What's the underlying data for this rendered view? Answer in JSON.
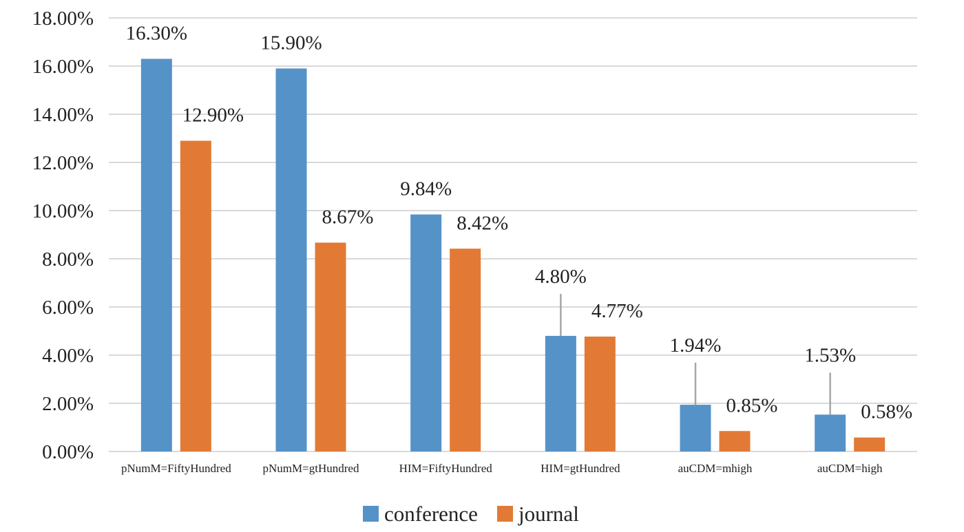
{
  "chart_data": {
    "type": "bar",
    "categories": [
      "pNumM=FiftyHundred",
      "pNumM=gtHundred",
      "HIM=FiftyHundred",
      "HIM=gtHundred",
      "auCDM=mhigh",
      "auCDM=high"
    ],
    "series": [
      {
        "name": "conference",
        "color": "#5592c8",
        "values": [
          16.3,
          15.9,
          9.84,
          4.8,
          1.94,
          1.53
        ],
        "labels": [
          "16.30%",
          "15.90%",
          "9.84%",
          "4.80%",
          "1.94%",
          "1.53%"
        ]
      },
      {
        "name": "journal",
        "color": "#e27a35",
        "values": [
          12.9,
          8.67,
          8.42,
          4.77,
          0.85,
          0.58
        ],
        "labels": [
          "12.90%",
          "8.67%",
          "8.42%",
          "4.77%",
          "0.85%",
          "0.58%"
        ]
      }
    ],
    "yticks": [
      "0.00%",
      "2.00%",
      "4.00%",
      "6.00%",
      "8.00%",
      "10.00%",
      "12.00%",
      "14.00%",
      "16.00%",
      "18.00%"
    ],
    "ylim": [
      0,
      18
    ],
    "title": "",
    "xlabel": "",
    "ylabel": "",
    "grid": true,
    "legend_position": "bottom"
  }
}
